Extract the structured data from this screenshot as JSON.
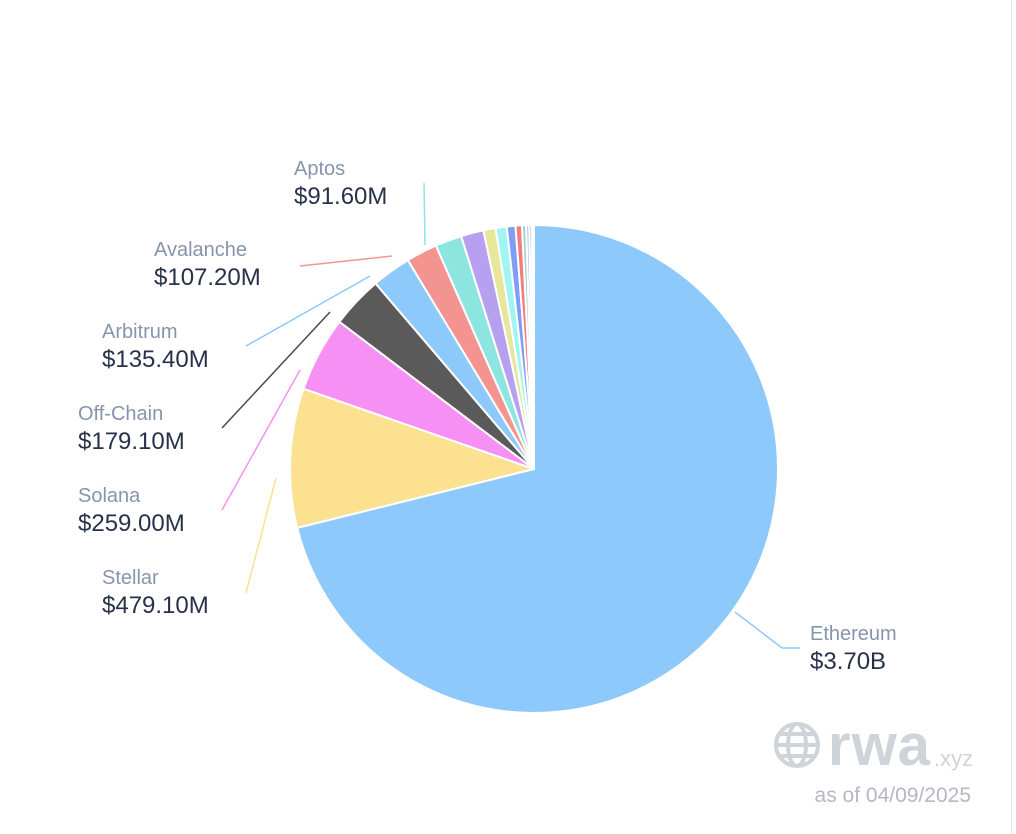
{
  "chart_data": {
    "type": "pie",
    "slices": [
      {
        "label": "Ethereum",
        "value_text": "$3.70B",
        "value": 3700.0,
        "color": "#8ec9fc"
      },
      {
        "label": "Stellar",
        "value_text": "$479.10M",
        "value": 479.1,
        "color": "#fbe190"
      },
      {
        "label": "Solana",
        "value_text": "$259.00M",
        "value": 259.0,
        "color": "#f690f4"
      },
      {
        "label": "Off-Chain",
        "value_text": "$179.10M",
        "value": 179.1,
        "color": "#5a5a5a"
      },
      {
        "label": "Arbitrum",
        "value_text": "$135.40M",
        "value": 135.4,
        "color": "#8ec9fc"
      },
      {
        "label": "Avalanche",
        "value_text": "$107.20M",
        "value": 107.2,
        "color": "#f49490"
      },
      {
        "label": "Aptos",
        "value_text": "$91.60M",
        "value": 91.6,
        "color": "#8de5e0"
      },
      {
        "value": 78,
        "color": "#b8a0f0"
      },
      {
        "value": 42,
        "color": "#e6e79a"
      },
      {
        "value": 38,
        "color": "#9ff5f2"
      },
      {
        "value": 30,
        "color": "#7f9df5"
      },
      {
        "value": 22,
        "color": "#f57a7a"
      },
      {
        "value": 14,
        "color": "#9fd0cc"
      },
      {
        "value": 11,
        "color": "#b3c6f5"
      },
      {
        "value": 9,
        "color": "#b8b2d8"
      },
      {
        "value": 7,
        "color": "#d6d9a6"
      }
    ]
  },
  "watermark": {
    "brand": "rwa",
    "suffix": ".xyz",
    "icon": "globe-icon"
  },
  "as_of": "as of 04/09/2025"
}
